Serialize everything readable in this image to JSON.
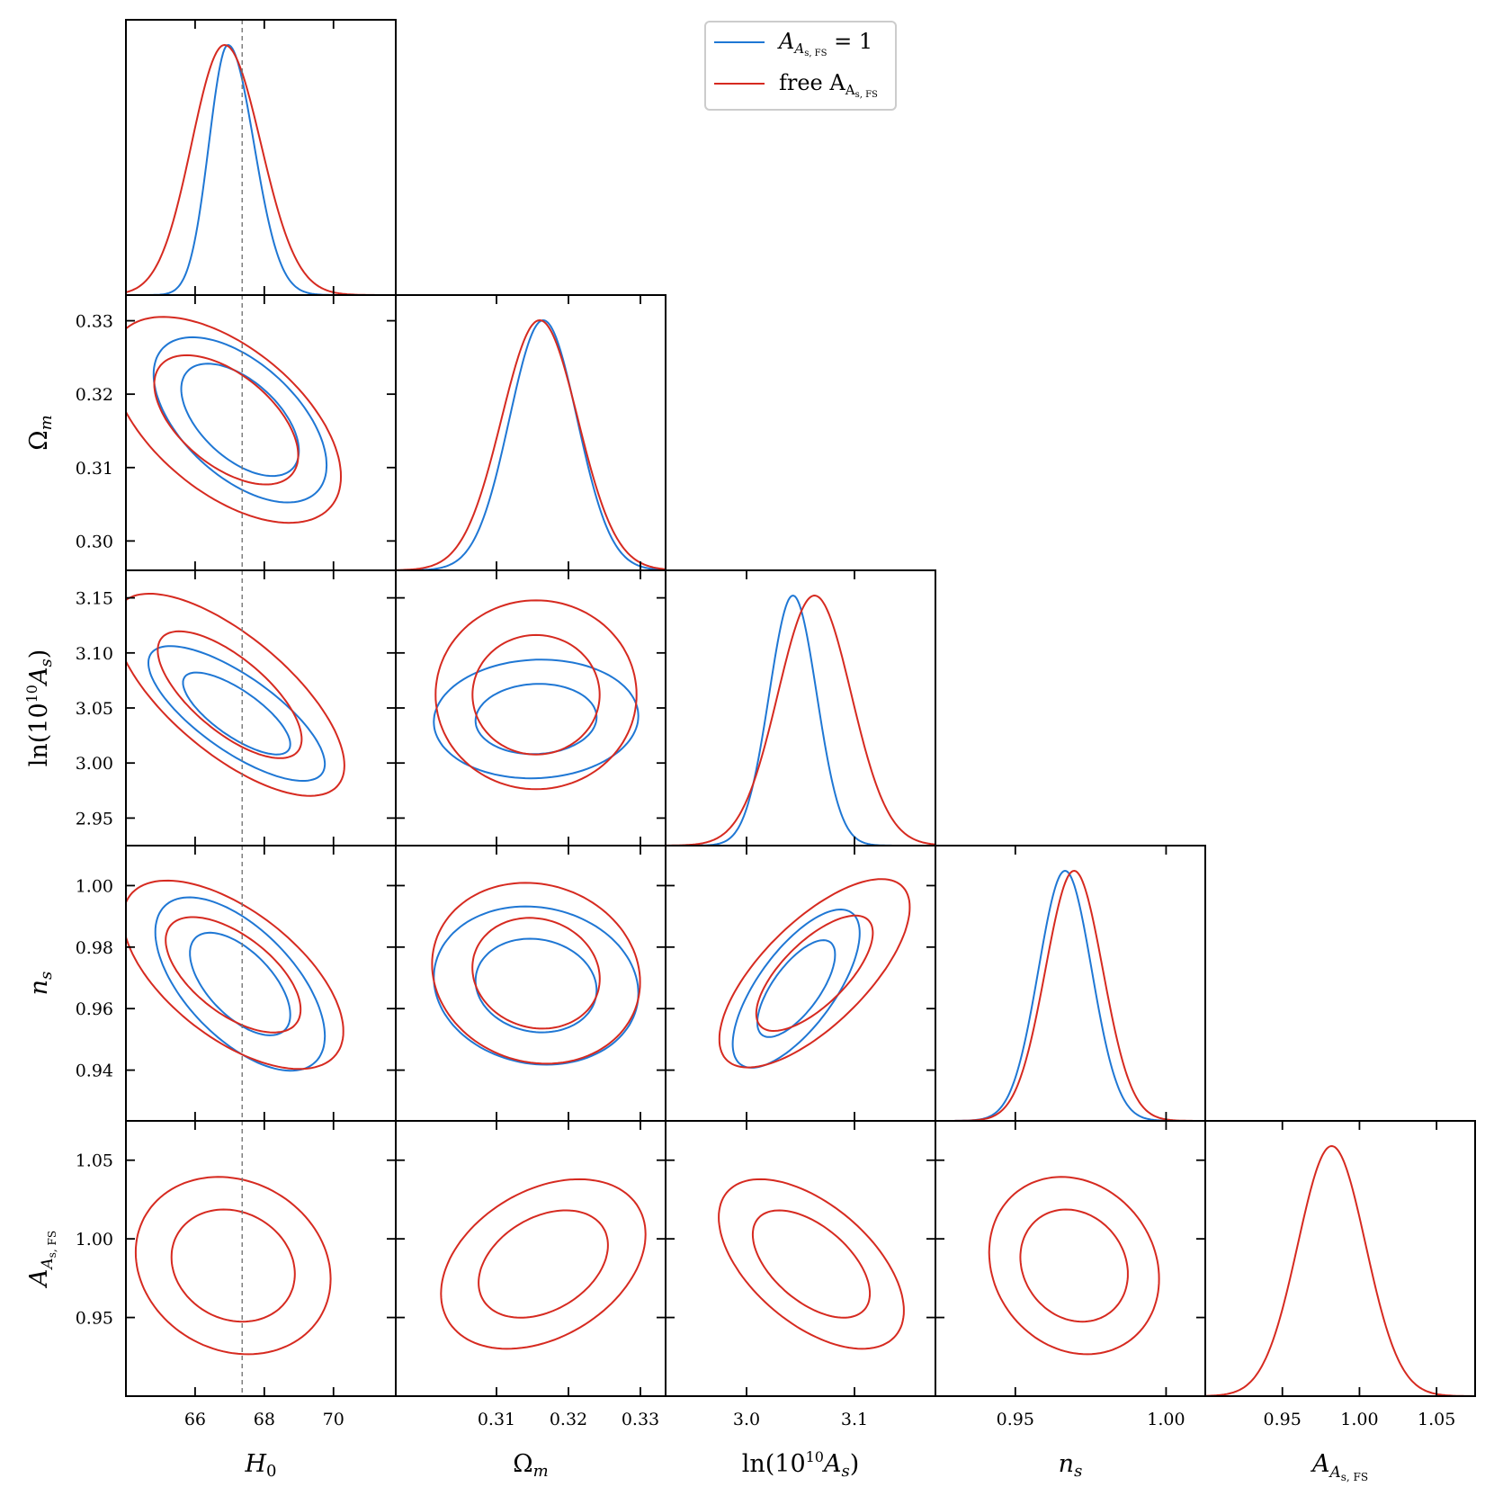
{
  "chart_data": {
    "type": "corner",
    "series": [
      {
        "name": "A_{A_s,FS} = 1",
        "color": "#1f77d4"
      },
      {
        "name": "free A_{A_s,FS}",
        "color": "#d62a20"
      }
    ],
    "legend": {
      "placement": "top-center",
      "entries": [
        "A_{A_s,FS} = 1",
        "free A_{A_s,FS}"
      ]
    },
    "reference_line": {
      "parameter": "H_0",
      "value": 67.36,
      "style": "dashed",
      "color": "#777777"
    },
    "parameters": [
      {
        "label": "H0",
        "range": [
          64.0,
          71.8
        ],
        "ticks": [
          "66",
          "68",
          "70"
        ],
        "tick_values": [
          66,
          68,
          70
        ]
      },
      {
        "label": "Ωm",
        "range": [
          0.296,
          0.3335
        ],
        "ticks": [
          "0.31",
          "0.32",
          "0.33"
        ],
        "tick_values": [
          0.31,
          0.32,
          0.33
        ],
        "y_ticks": [
          "0.30",
          "0.31",
          "0.32",
          "0.33"
        ],
        "y_tick_values": [
          0.3,
          0.31,
          0.32,
          0.33
        ]
      },
      {
        "label": "ln(10^10 As)",
        "range": [
          2.925,
          3.175
        ],
        "ticks": [
          "3.0",
          "3.1"
        ],
        "tick_values": [
          3.0,
          3.1
        ],
        "y_ticks": [
          "2.95",
          "3.00",
          "3.05",
          "3.10",
          "3.15"
        ],
        "y_tick_values": [
          2.95,
          3.0,
          3.05,
          3.1,
          3.15
        ]
      },
      {
        "label": "ns",
        "range": [
          0.9235,
          1.013
        ],
        "ticks": [
          "0.95",
          "1.00"
        ],
        "tick_values": [
          0.95,
          1.0
        ],
        "y_ticks": [
          "0.94",
          "0.96",
          "0.98",
          "1.00"
        ],
        "y_tick_values": [
          0.94,
          0.96,
          0.98,
          1.0
        ]
      },
      {
        "label": "A_As,FS",
        "range": [
          0.9,
          1.075
        ],
        "ticks": [
          "0.95",
          "1.00",
          "1.05"
        ],
        "tick_values": [
          0.95,
          1.0,
          1.05
        ],
        "y_ticks": [
          "0.95",
          "1.00",
          "1.05"
        ],
        "y_tick_values": [
          0.95,
          1.0,
          1.05
        ]
      }
    ],
    "marginals": [
      {
        "param": 0,
        "series": [
          {
            "mean": 66.95,
            "sigma_left": 0.55,
            "sigma_right": 0.75
          },
          {
            "mean": 66.85,
            "sigma_left": 0.95,
            "sigma_right": 1.05
          }
        ]
      },
      {
        "param": 1,
        "series": [
          {
            "mean": 0.3165,
            "sigma": 0.0047
          },
          {
            "mean": 0.316,
            "sigma": 0.0053
          }
        ]
      },
      {
        "param": 2,
        "series": [
          {
            "mean": 3.043,
            "sigma": 0.022
          },
          {
            "mean": 3.063,
            "sigma": 0.034
          }
        ]
      },
      {
        "param": 3,
        "series": [
          {
            "mean": 0.9665,
            "sigma": 0.0088
          },
          {
            "mean": 0.9695,
            "sigma": 0.0095
          }
        ]
      },
      {
        "param": 4,
        "series": [
          {
            "mean": 0.982,
            "sigma": 0.022
          }
        ]
      }
    ],
    "contours": [
      {
        "px": 0,
        "py": 1,
        "series": [
          {
            "mean": [
              67.3,
              0.3165
            ],
            "sx": 1.0,
            "sy": 0.0045,
            "rho": -0.55,
            "inner": 1.7,
            "outer": 2.5
          },
          {
            "mean": [
              66.9,
              0.3165
            ],
            "sx": 1.3,
            "sy": 0.0055,
            "rho": -0.55,
            "inner": 1.6,
            "outer": 2.55
          }
        ]
      },
      {
        "px": 0,
        "py": 2,
        "series": [
          {
            "mean": [
              67.2,
              3.045
            ],
            "sx": 1.0,
            "sy": 0.024,
            "rho": -0.75,
            "inner": 1.55,
            "outer": 2.55
          },
          {
            "mean": [
              67.0,
              3.062
            ],
            "sx": 1.3,
            "sy": 0.036,
            "rho": -0.7,
            "inner": 1.6,
            "outer": 2.55
          }
        ]
      },
      {
        "px": 0,
        "py": 3,
        "series": [
          {
            "mean": [
              67.3,
              0.968
            ],
            "sx": 1.0,
            "sy": 0.0115,
            "rho": -0.6,
            "inner": 1.45,
            "outer": 2.45
          },
          {
            "mean": [
              67.1,
              0.971
            ],
            "sx": 1.3,
            "sy": 0.0125,
            "rho": -0.6,
            "inner": 1.5,
            "outer": 2.45
          }
        ]
      },
      {
        "px": 0,
        "py": 4,
        "series": [
          {
            "mean": [
              67.1,
              0.983
            ],
            "sx": 1.15,
            "sy": 0.023,
            "rho": -0.15,
            "inner": 1.55,
            "outer": 2.45
          }
        ]
      },
      {
        "px": 1,
        "py": 2,
        "series": [
          {
            "mean": [
              0.3155,
              3.04
            ],
            "sx": 0.0058,
            "sy": 0.022,
            "rho": 0.05,
            "inner": 1.45,
            "outer": 2.45
          },
          {
            "mean": [
              0.3155,
              3.062
            ],
            "sx": 0.0057,
            "sy": 0.035,
            "rho": 0.0,
            "inner": 1.55,
            "outer": 2.45
          }
        ]
      },
      {
        "px": 1,
        "py": 3,
        "series": [
          {
            "mean": [
              0.3155,
              0.9675
            ],
            "sx": 0.0058,
            "sy": 0.0105,
            "rho": -0.1,
            "inner": 1.45,
            "outer": 2.45
          },
          {
            "mean": [
              0.3155,
              0.9715
            ],
            "sx": 0.0059,
            "sy": 0.012,
            "rho": -0.1,
            "inner": 1.5,
            "outer": 2.45
          }
        ]
      },
      {
        "px": 1,
        "py": 4,
        "series": [
          {
            "mean": [
              0.3165,
              0.984
            ],
            "sx": 0.0058,
            "sy": 0.022,
            "rho": 0.35,
            "inner": 1.55,
            "outer": 2.45
          }
        ]
      },
      {
        "px": 2,
        "py": 3,
        "series": [
          {
            "mean": [
              3.046,
              0.9665
            ],
            "sx": 0.024,
            "sy": 0.0105,
            "rho": 0.7,
            "inner": 1.5,
            "outer": 2.45
          },
          {
            "mean": [
              3.063,
              0.9715
            ],
            "sx": 0.036,
            "sy": 0.0125,
            "rho": 0.7,
            "inner": 1.5,
            "outer": 2.45
          }
        ]
      },
      {
        "px": 2,
        "py": 4,
        "series": [
          {
            "mean": [
              3.06,
              0.984
            ],
            "sx": 0.035,
            "sy": 0.022,
            "rho": -0.55,
            "inner": 1.55,
            "outer": 2.45
          }
        ]
      },
      {
        "px": 3,
        "py": 4,
        "series": [
          {
            "mean": [
              0.9695,
              0.983
            ],
            "sx": 0.0115,
            "sy": 0.023,
            "rho": -0.15,
            "inner": 1.55,
            "outer": 2.45
          }
        ]
      }
    ]
  }
}
